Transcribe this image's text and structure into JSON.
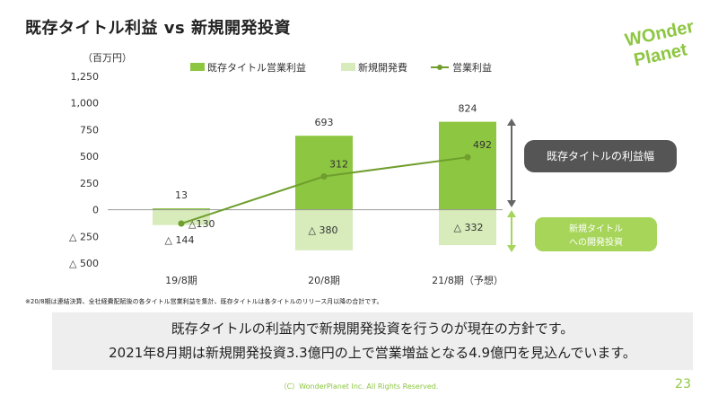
{
  "slide": {
    "title": "既存タイトル利益 vs 新規開発投資",
    "footnote": "※20/8期は連結決算、全社経費配賦後の各タイトル営業利益を集計、既存タイトルは各タイトルのリリース月以降の合計です。",
    "summary": [
      "既存タイトルの利益内で新規開発投資を行うのが現在の方針です。",
      "2021年8月期は新規開発投資3.3億円の上で営業増益となる4.9億円を見込んでいます。"
    ],
    "copyright": "（C）WonderPlanet Inc.  All Rights Reserved.",
    "page_number": "23",
    "logo": {
      "line1": "WOnder",
      "line2": "Planet",
      "icon": "wonderplanet-logo"
    }
  },
  "colors": {
    "existing": "#8dc641",
    "development": "#d7ebbb",
    "profit_line": "#6f9e2e",
    "dark_callout": "#555555",
    "green_callout": "#a6d55a",
    "brand": "#8dc641"
  },
  "chart_data": {
    "type": "bar",
    "unit_label": "（百万円）",
    "categories": [
      "19/8期",
      "20/8期",
      "21/8期（予想）"
    ],
    "ylim": [
      -500,
      1250
    ],
    "yticks": [
      {
        "value": 1250,
        "label": "1,250"
      },
      {
        "value": 1000,
        "label": "1,000"
      },
      {
        "value": 750,
        "label": "750"
      },
      {
        "value": 500,
        "label": "500"
      },
      {
        "value": 250,
        "label": "250"
      },
      {
        "value": 0,
        "label": "0"
      },
      {
        "value": -250,
        "label": "△ 250"
      },
      {
        "value": -500,
        "label": "△ 500"
      }
    ],
    "series": [
      {
        "name": "既存タイトル営業利益",
        "kind": "bar",
        "values": [
          13,
          693,
          824
        ],
        "labels": [
          "13",
          "693",
          "824"
        ]
      },
      {
        "name": "新規開発費",
        "kind": "bar",
        "values": [
          -144,
          -380,
          -332
        ],
        "labels": [
          "△ 144",
          "△ 380",
          "△ 332"
        ]
      },
      {
        "name": "営業利益",
        "kind": "line",
        "values": [
          -130,
          312,
          492
        ],
        "labels": [
          "△130",
          "312",
          "492"
        ]
      }
    ],
    "legend_position": "top",
    "grid": false,
    "annotations": {
      "profit_margin": "既存タイトルの利益幅",
      "dev_investment": [
        "新規タイトル",
        "への開発投資"
      ]
    }
  }
}
